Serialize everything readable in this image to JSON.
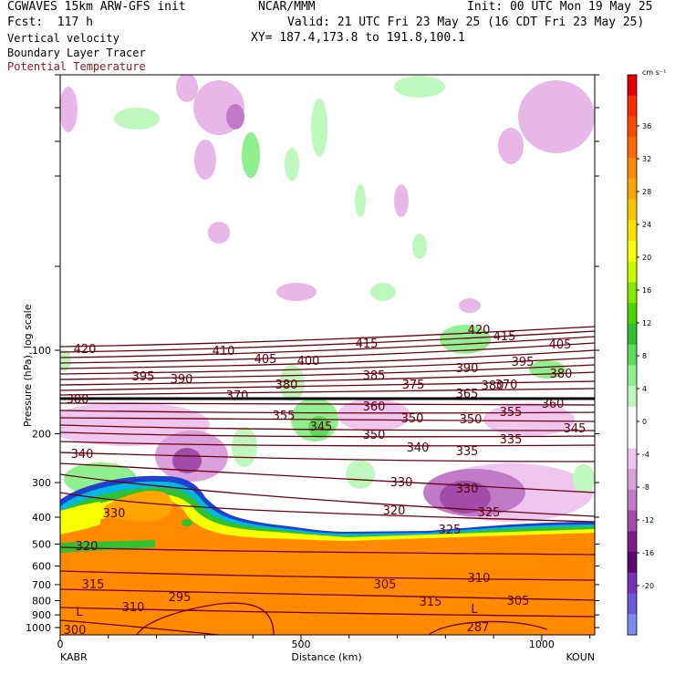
{
  "header": {
    "line1_left": "CGWAVES 15km ARW-GFS init",
    "line1_mid": "NCAR/MMM",
    "line1_right": "Init: 00 UTC Mon 19 May 25",
    "line2_left": "Fcst:  117 h",
    "line2_right": "Valid: 21 UTC Fri 23 May 25 (16 CDT Fri 23 May 25)",
    "line3_left": "Vertical velocity",
    "line3_mid": "XY= 187.4,173.8 to 191.8,100.1",
    "line4_left": "Boundary Layer Tracer",
    "line5_left": "Potential Temperature"
  },
  "colors": {
    "theta": "#6b0010",
    "label_theta": "#8b1a2a",
    "tracer": "#ff8a00"
  },
  "chart_data": {
    "type": "heatmap",
    "title": "Vertical velocity / Potential Temperature cross section",
    "xlabel": "Distance (km)",
    "ylabel": "Pressure (hPa), log scale",
    "x_ticks": [
      "0",
      "500",
      "1000"
    ],
    "x_tick_values": [
      0,
      500,
      1000
    ],
    "xlim": [
      0,
      1110
    ],
    "y_ticks": [
      "100",
      "200",
      "300",
      "400",
      "500",
      "600",
      "700",
      "800",
      "900",
      "1000"
    ],
    "y_tick_values": [
      100,
      200,
      300,
      400,
      500,
      600,
      700,
      800,
      900,
      1000
    ],
    "y_scale": "log",
    "start_label": "KABR",
    "end_label": "KOUN",
    "colorbar": {
      "units": "cm s⁻¹",
      "ticks": [
        "36",
        "32",
        "28",
        "24",
        "20",
        "16",
        "12",
        "8",
        "4",
        "0",
        "-4",
        "-8",
        "-12",
        "-16",
        "-20"
      ],
      "colors": [
        "#e00000",
        "#ff2a00",
        "#ff4a00",
        "#ff6a00",
        "#ff8a00",
        "#ffa500",
        "#ffc400",
        "#ffe000",
        "#f8ff00",
        "#c8ff00",
        "#86e800",
        "#4ad400",
        "#30c030",
        "#5adc5a",
        "#8ef08e",
        "#bff8bf",
        "#ffffff",
        "#ffffff",
        "#efc6ef",
        "#dca0dc",
        "#c07ac8",
        "#a04ca8",
        "#7a1c8a",
        "#5a0a70",
        "#7a30b8",
        "#6a5ad8",
        "#7a8cf0"
      ]
    },
    "theta_contour_labels": [
      "420",
      "410",
      "405",
      "400",
      "415",
      "420",
      "415",
      "405",
      "395",
      "390",
      "380",
      "385",
      "375",
      "390",
      "395",
      "380",
      "370",
      "380",
      "365",
      "370",
      "360",
      "355",
      "345",
      "350",
      "350",
      "355",
      "360",
      "345",
      "350",
      "340",
      "335",
      "335",
      "340",
      "330",
      "330",
      "330",
      "320",
      "325",
      "325",
      "320",
      "315",
      "305",
      "310",
      "315",
      "305",
      "310",
      "295",
      "300",
      "287",
      "300",
      "375"
    ],
    "markers": [
      "L",
      "L"
    ]
  }
}
